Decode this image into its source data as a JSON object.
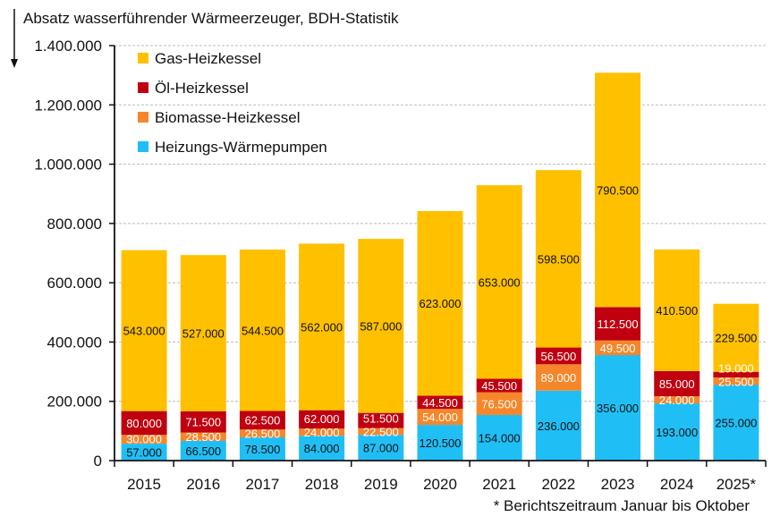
{
  "chart_data": {
    "type": "bar",
    "stacked": true,
    "title": "Absatz wasserführender Wärmeerzeuger, BDH-Statistik",
    "footnote": "* Berichtszeitraum Januar bis Oktober",
    "categories": [
      "2015",
      "2016",
      "2017",
      "2018",
      "2019",
      "2020",
      "2021",
      "2022",
      "2023",
      "2024",
      "2025*"
    ],
    "ylim": [
      0,
      1400000
    ],
    "yticks": [
      0,
      200000,
      400000,
      600000,
      800000,
      1000000,
      1200000,
      1400000
    ],
    "ytick_labels": [
      "0",
      "200.000",
      "400.000",
      "600.000",
      "800.000",
      "1.000.000",
      "1.200.000",
      "1.400.000"
    ],
    "grid": true,
    "legend_position": "top-left",
    "series": [
      {
        "name": "Heizungs-Wärmepumpen",
        "color": "#1fbff5",
        "values": [
          57000,
          66500,
          78500,
          84000,
          87000,
          120500,
          154000,
          236000,
          356000,
          193000,
          255000
        ],
        "labels": [
          "57.000",
          "66.500",
          "78.500",
          "84.000",
          "87.000",
          "120.500",
          "154.000",
          "236.000",
          "356.000",
          "193.000",
          "255.000"
        ]
      },
      {
        "name": "Biomasse-Heizkessel",
        "color": "#f5862a",
        "values": [
          30000,
          28500,
          26500,
          24000,
          22500,
          54000,
          76500,
          89000,
          49500,
          24000,
          25500
        ],
        "labels": [
          "30.000",
          "28.500",
          "26.500",
          "24.000",
          "22.500",
          "54.000",
          "76.500",
          "89.000",
          "49.500",
          "24.000",
          "25.500"
        ]
      },
      {
        "name": "Öl-Heizkessel",
        "color": "#c00010",
        "values": [
          80000,
          71500,
          62500,
          62000,
          51500,
          44500,
          45500,
          56500,
          112500,
          85000,
          19000
        ],
        "labels": [
          "80.000",
          "71.500",
          "62.500",
          "62.000",
          "51.500",
          "44.500",
          "45.500",
          "56.500",
          "112.500",
          "85.000",
          "19.000"
        ]
      },
      {
        "name": "Gas-Heizkessel",
        "color": "#ffc000",
        "values": [
          543000,
          527000,
          544500,
          562000,
          587000,
          623000,
          653000,
          598500,
          790500,
          410500,
          229500
        ],
        "labels": [
          "543.000",
          "527.000",
          "544.500",
          "562.000",
          "587.000",
          "623.000",
          "653.000",
          "598.500",
          "790.500",
          "410.500",
          "229.500"
        ]
      }
    ]
  }
}
